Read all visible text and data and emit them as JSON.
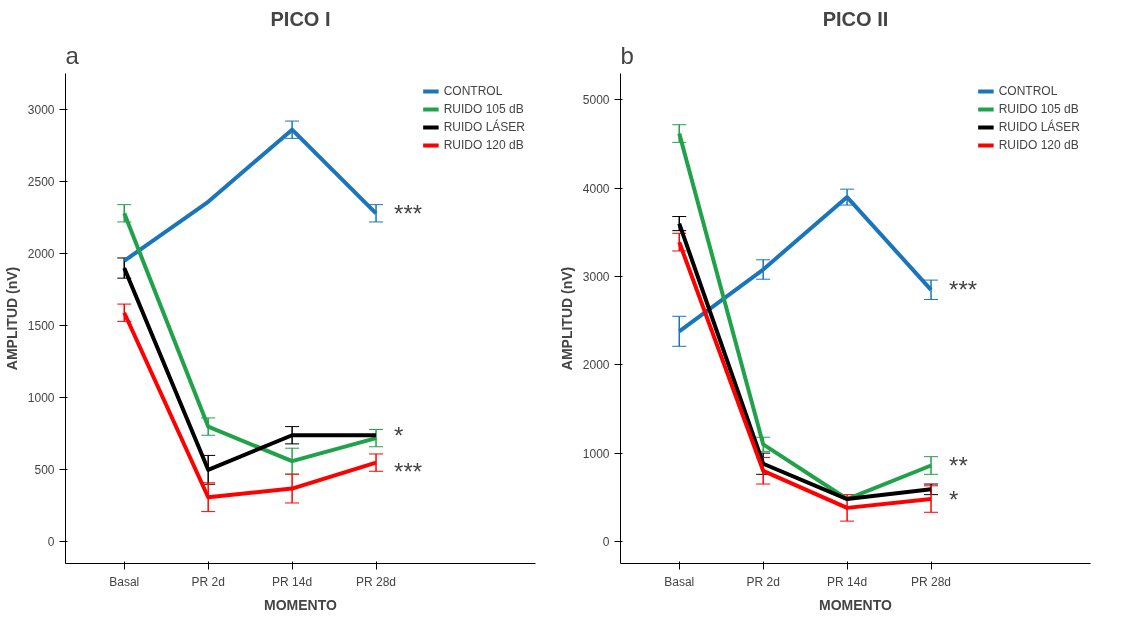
{
  "chart_data": [
    {
      "type": "line",
      "title": "PICO I",
      "xlabel": "MOMENTO",
      "ylabel": "AMPLITUD (nV)",
      "categories": [
        "Basal",
        "PR 2d",
        "PR 14d",
        "PR 28d"
      ],
      "series": [
        {
          "name": "CONTROL",
          "color": "#1b75bc",
          "values": [
            1950,
            2360,
            2860,
            2280
          ],
          "errors": [
            null,
            null,
            60,
            60
          ]
        },
        {
          "name": "RUIDO 105 dB",
          "color": "#21a24a",
          "values": [
            2280,
            800,
            560,
            720
          ],
          "errors": [
            60,
            60,
            90,
            60
          ]
        },
        {
          "name": "RUIDO LÁSER",
          "color": "#000000",
          "values": [
            1900,
            500,
            740,
            740
          ],
          "errors": [
            70,
            100,
            60,
            null
          ]
        },
        {
          "name": "RUIDO 120 dB",
          "color": "#ff0000",
          "values": [
            1590,
            310,
            370,
            550
          ],
          "errors": [
            60,
            100,
            100,
            60
          ]
        }
      ],
      "ylim": [
        -150,
        3250
      ],
      "yticks": [
        0,
        500,
        1000,
        1500,
        2000,
        2500,
        3000
      ],
      "grid": false,
      "legend": "top right",
      "marker": "none",
      "line_style": "solid",
      "annotations": [
        "a",
        {
          "text": "***",
          "x": "PR 28d",
          "y": 2280
        },
        {
          "text": "*",
          "x": "PR 28d",
          "y": 740
        },
        {
          "text": "***",
          "x": "PR 28d",
          "y": 490
        }
      ]
    },
    {
      "type": "line",
      "title": "PICO II",
      "xlabel": "MOMENTO",
      "ylabel": "AMPLITUD (nV)",
      "categories": [
        "Basal",
        "PR 2d",
        "PR 14d",
        "PR 28d"
      ],
      "series": [
        {
          "name": "CONTROL",
          "color": "#1b75bc",
          "values": [
            2380,
            3080,
            3900,
            2850
          ],
          "errors": [
            170,
            110,
            90,
            110
          ]
        },
        {
          "name": "RUIDO 105 dB",
          "color": "#21a24a",
          "values": [
            4620,
            1100,
            480,
            860
          ],
          "errors": [
            100,
            80,
            null,
            100
          ]
        },
        {
          "name": "RUIDO LÁSER",
          "color": "#000000",
          "values": [
            3600,
            880,
            480,
            590
          ],
          "errors": [
            80,
            120,
            null,
            60
          ]
        },
        {
          "name": "RUIDO 120 dB",
          "color": "#ff0000",
          "values": [
            3390,
            800,
            380,
            480
          ],
          "errors": [
            100,
            150,
            150,
            150
          ]
        }
      ],
      "ylim": [
        -250,
        5300
      ],
      "yticks": [
        0,
        1000,
        2000,
        3000,
        4000,
        5000
      ],
      "grid": false,
      "legend": "top right",
      "marker": "none",
      "line_style": "solid",
      "annotations": [
        "b",
        {
          "text": "***",
          "x": "PR 28d",
          "y": 2850
        },
        {
          "text": "**",
          "x": "PR 28d",
          "y": 860
        },
        {
          "text": "*",
          "x": "PR 28d",
          "y": 480
        }
      ]
    }
  ]
}
